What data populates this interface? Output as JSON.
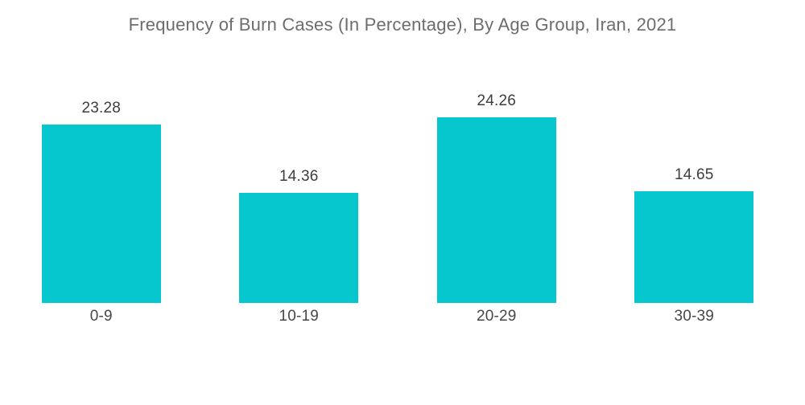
{
  "chart_data": {
    "type": "bar",
    "title": "Frequency of Burn Cases (In Percentage), By Age Group, Iran, 2021",
    "categories": [
      "0-9",
      "10-19",
      "20-29",
      "30-39"
    ],
    "values": [
      23.28,
      14.36,
      24.26,
      14.65
    ],
    "value_labels": [
      "23.28",
      "14.36",
      "24.26",
      "14.65"
    ],
    "xlabel": "",
    "ylabel": "",
    "ylim": [
      0,
      25
    ],
    "grid": false,
    "legend": "none",
    "colors": {
      "bar": "#06C7CE",
      "title_text": "#6D6D6D",
      "value_text": "#3D3D3D",
      "category_text": "#474747",
      "background": "#FFFFFF"
    }
  }
}
